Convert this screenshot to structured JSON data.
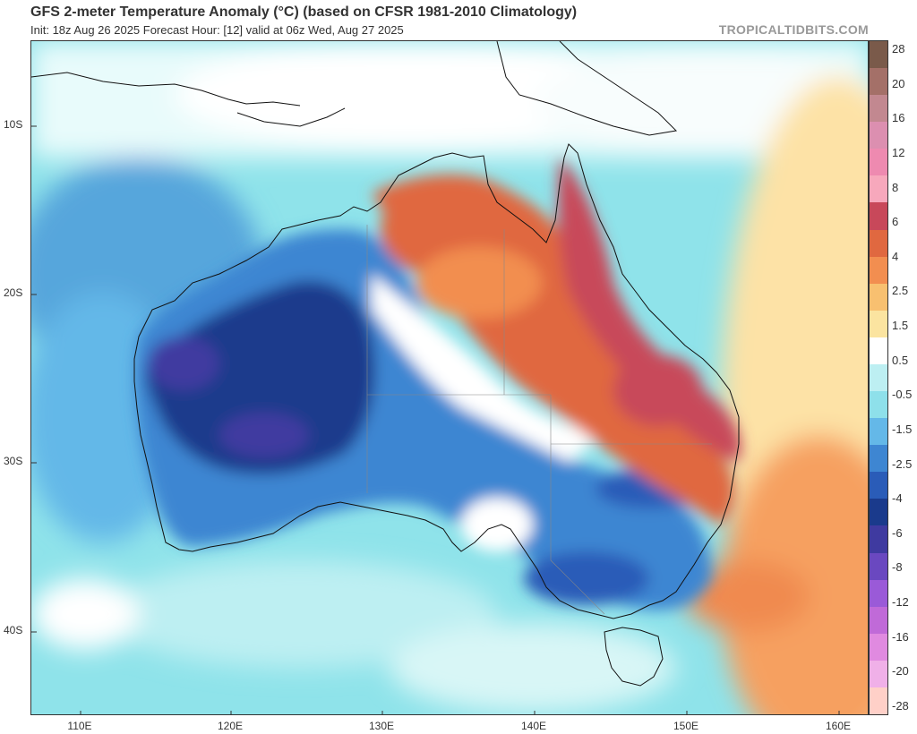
{
  "header": {
    "title": "GFS 2-meter Temperature Anomaly (°C) (based on CFSR 1981-2010 Climatology)",
    "subtitle": "Init: 18z Aug 26 2025   Forecast Hour: [12]   valid at 06z Wed, Aug 27 2025",
    "brand": "TROPICALTIDBITS.COM"
  },
  "map": {
    "region": "Australia",
    "lat_labels": [
      "10S",
      "20S",
      "30S",
      "40S"
    ],
    "lon_labels": [
      "110E",
      "120E",
      "130E",
      "140E",
      "150E",
      "160E"
    ]
  },
  "colorbar": {
    "labels": [
      "28",
      "20",
      "16",
      "12",
      "8",
      "6",
      "4",
      "2.5",
      "1.5",
      "0.5",
      "-0.5",
      "-1.5",
      "-2.5",
      "-4",
      "-6",
      "-8",
      "-12",
      "-16",
      "-20",
      "-28"
    ],
    "colors": [
      "#7a5a4a",
      "#a47068",
      "#c28890",
      "#dc8fb0",
      "#ee8ab0",
      "#f7a8bc",
      "#c8485a",
      "#e06840",
      "#f28e50",
      "#f8c070",
      "#fbe4a0",
      "#ffffff",
      "#bdeff2",
      "#8ee0ea",
      "#64b8e8",
      "#3e86d2",
      "#2a5cb8",
      "#1a3a8c",
      "#3f3aa0",
      "#6a48c0",
      "#9a5ad8",
      "#c06ad8",
      "#e08ae0",
      "#f0b0e8",
      "#ffd0c8"
    ]
  }
}
